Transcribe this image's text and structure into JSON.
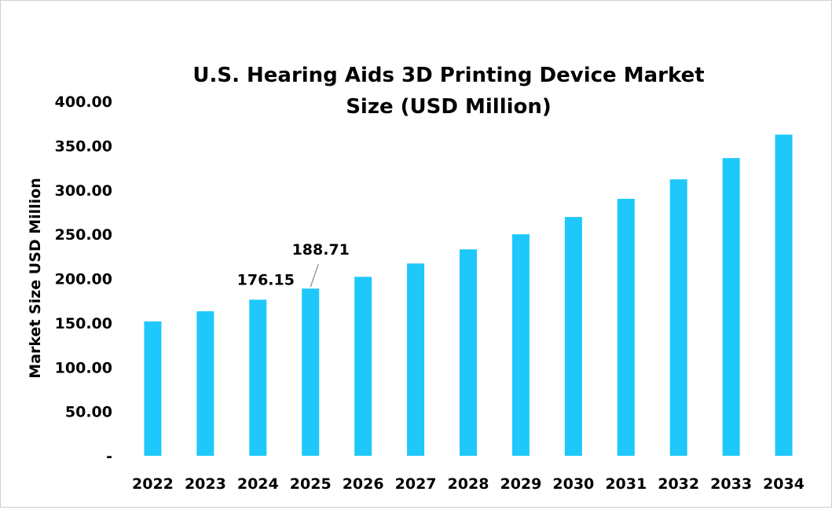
{
  "chart_data": {
    "type": "bar",
    "title": "U.S. Hearing Aids 3D Printing Device Market Size (USD Million)",
    "title_lines": [
      "U.S. Hearing Aids 3D Printing Device Market",
      "Size (USD Million)"
    ],
    "xlabel": "",
    "ylabel": "Market Size USD Million",
    "categories": [
      "2022",
      "2023",
      "2024",
      "2025",
      "2026",
      "2027",
      "2028",
      "2029",
      "2030",
      "2031",
      "2032",
      "2033",
      "2034"
    ],
    "values": [
      151.6,
      163.1,
      176.15,
      188.71,
      202.0,
      217.0,
      233.0,
      250.0,
      269.5,
      290.0,
      312.0,
      336.0,
      362.5
    ],
    "data_labels": [
      {
        "category": "2024",
        "text": "176.15"
      },
      {
        "category": "2025",
        "text": "188.71"
      }
    ],
    "ylim": [
      0,
      400
    ],
    "yticks": [
      0,
      50,
      100,
      150,
      200,
      250,
      300,
      350,
      400
    ],
    "ytick_labels": [
      "-",
      "50.00",
      "100.00",
      "150.00",
      "200.00",
      "250.00",
      "300.00",
      "350.00",
      "400.00"
    ],
    "grid": false,
    "legend": "none",
    "bar_color": "#1EC8FA"
  }
}
